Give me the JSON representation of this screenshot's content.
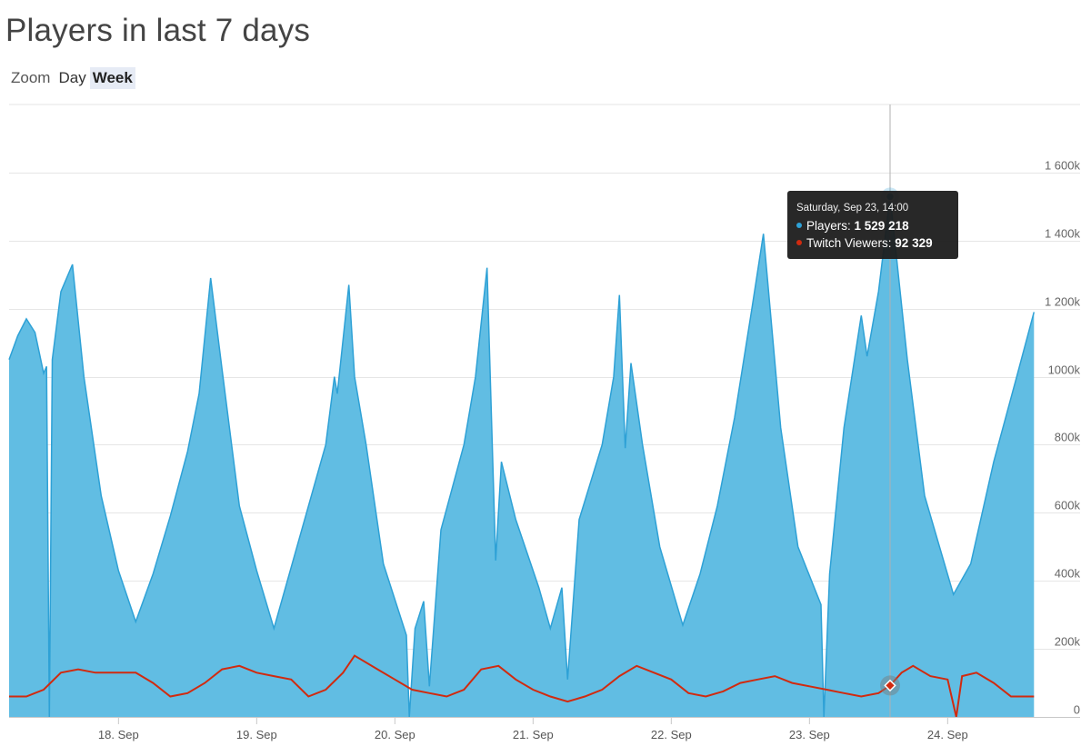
{
  "page": {
    "title": "Players in last 7 days"
  },
  "zoom": {
    "label": "Zoom",
    "buttons": [
      "Day",
      "Week"
    ],
    "active": "Week"
  },
  "tooltip": {
    "date": "Saturday, Sep 23, 14:00",
    "rows": [
      {
        "name": "Players",
        "value": "1 529 218",
        "color": "#2ea1d6"
      },
      {
        "name": "Twitch Viewers",
        "value": "92 329",
        "color": "#d12a0f"
      }
    ]
  },
  "colors": {
    "players_fill": "#61bde3",
    "players_line": "#2ea1d6",
    "twitch_line": "#d12a0f",
    "grid": "#e6e6e6"
  },
  "chart_data": {
    "type": "area",
    "title": "Players in last 7 days",
    "x_unit": "days",
    "x_range": [
      "Sep 17, 05:00",
      "Sep 24, 23:00"
    ],
    "x_ticks": [
      "18. Sep",
      "19. Sep",
      "20. Sep",
      "21. Sep",
      "22. Sep",
      "23. Sep",
      "24. Sep"
    ],
    "y_ticks": [
      "0",
      "200k",
      "400k",
      "600k",
      "800k",
      "1000k",
      "1 200k",
      "1 400k",
      "1 600k"
    ],
    "ylim": [
      0,
      1800000
    ],
    "grid": true,
    "series": [
      {
        "name": "Players",
        "type": "area",
        "points": [
          [
            "Sep 17 05:00",
            1050000
          ],
          [
            "Sep 17 06:30",
            1120000
          ],
          [
            "Sep 17 08:00",
            1170000
          ],
          [
            "Sep 17 09:30",
            1130000
          ],
          [
            "Sep 17 11:00",
            1010000
          ],
          [
            "Sep 17 11:30",
            1030000
          ],
          [
            "Sep 17 12:00",
            0
          ],
          [
            "Sep 17 12:30",
            1050000
          ],
          [
            "Sep 17 14:00",
            1250000
          ],
          [
            "Sep 17 16:00",
            1330000
          ],
          [
            "Sep 17 18:00",
            1000000
          ],
          [
            "Sep 17 21:00",
            650000
          ],
          [
            "Sep 18 00:00",
            430000
          ],
          [
            "Sep 18 03:00",
            280000
          ],
          [
            "Sep 18 06:00",
            420000
          ],
          [
            "Sep 18 09:00",
            590000
          ],
          [
            "Sep 18 12:00",
            780000
          ],
          [
            "Sep 18 14:00",
            950000
          ],
          [
            "Sep 18 16:00",
            1290000
          ],
          [
            "Sep 18 18:00",
            1020000
          ],
          [
            "Sep 18 21:00",
            620000
          ],
          [
            "Sep 19 00:00",
            430000
          ],
          [
            "Sep 19 03:00",
            260000
          ],
          [
            "Sep 19 06:00",
            440000
          ],
          [
            "Sep 19 09:00",
            620000
          ],
          [
            "Sep 19 12:00",
            800000
          ],
          [
            "Sep 19 13:30",
            1000000
          ],
          [
            "Sep 19 14:00",
            950000
          ],
          [
            "Sep 19 16:00",
            1270000
          ],
          [
            "Sep 19 17:00",
            1000000
          ],
          [
            "Sep 19 19:00",
            800000
          ],
          [
            "Sep 19 22:00",
            450000
          ],
          [
            "Sep 20 02:00",
            240000
          ],
          [
            "Sep 20 02:30",
            0
          ],
          [
            "Sep 20 03:30",
            260000
          ],
          [
            "Sep 20 05:00",
            340000
          ],
          [
            "Sep 20 06:00",
            90000
          ],
          [
            "Sep 20 08:00",
            550000
          ],
          [
            "Sep 20 12:00",
            800000
          ],
          [
            "Sep 20 14:00",
            1000000
          ],
          [
            "Sep 20 16:00",
            1320000
          ],
          [
            "Sep 20 17:30",
            460000
          ],
          [
            "Sep 20 18:30",
            750000
          ],
          [
            "Sep 20 21:00",
            580000
          ],
          [
            "Sep 21 01:00",
            380000
          ],
          [
            "Sep 21 03:00",
            260000
          ],
          [
            "Sep 21 05:00",
            380000
          ],
          [
            "Sep 21 06:00",
            110000
          ],
          [
            "Sep 21 08:00",
            580000
          ],
          [
            "Sep 21 12:00",
            800000
          ],
          [
            "Sep 21 14:00",
            1000000
          ],
          [
            "Sep 21 15:00",
            1240000
          ],
          [
            "Sep 21 16:00",
            790000
          ],
          [
            "Sep 21 17:00",
            1040000
          ],
          [
            "Sep 21 19:00",
            800000
          ],
          [
            "Sep 21 22:00",
            500000
          ],
          [
            "Sep 22 02:00",
            270000
          ],
          [
            "Sep 22 05:00",
            420000
          ],
          [
            "Sep 22 08:00",
            620000
          ],
          [
            "Sep 22 11:00",
            880000
          ],
          [
            "Sep 22 14:00",
            1200000
          ],
          [
            "Sep 22 16:00",
            1420000
          ],
          [
            "Sep 22 19:00",
            850000
          ],
          [
            "Sep 22 22:00",
            500000
          ],
          [
            "Sep 23 02:00",
            330000
          ],
          [
            "Sep 23 02:30",
            0
          ],
          [
            "Sep 23 03:30",
            420000
          ],
          [
            "Sep 23 06:00",
            850000
          ],
          [
            "Sep 23 09:00",
            1180000
          ],
          [
            "Sep 23 10:00",
            1060000
          ],
          [
            "Sep 23 12:00",
            1250000
          ],
          [
            "Sep 23 14:00",
            1529218
          ],
          [
            "Sep 23 17:00",
            1050000
          ],
          [
            "Sep 23 20:00",
            650000
          ],
          [
            "Sep 24 01:00",
            360000
          ],
          [
            "Sep 24 04:00",
            450000
          ],
          [
            "Sep 24 08:00",
            750000
          ],
          [
            "Sep 24 12:00",
            1000000
          ],
          [
            "Sep 24 15:00",
            1190000
          ]
        ]
      },
      {
        "name": "Twitch Viewers",
        "type": "line",
        "points": [
          [
            "Sep 17 05:00",
            60000
          ],
          [
            "Sep 17 08:00",
            60000
          ],
          [
            "Sep 17 11:00",
            80000
          ],
          [
            "Sep 17 14:00",
            130000
          ],
          [
            "Sep 17 17:00",
            140000
          ],
          [
            "Sep 17 20:00",
            130000
          ],
          [
            "Sep 18 00:00",
            130000
          ],
          [
            "Sep 18 03:00",
            130000
          ],
          [
            "Sep 18 06:00",
            100000
          ],
          [
            "Sep 18 09:00",
            60000
          ],
          [
            "Sep 18 12:00",
            70000
          ],
          [
            "Sep 18 15:00",
            100000
          ],
          [
            "Sep 18 18:00",
            140000
          ],
          [
            "Sep 18 21:00",
            150000
          ],
          [
            "Sep 19 00:00",
            130000
          ],
          [
            "Sep 19 03:00",
            120000
          ],
          [
            "Sep 19 06:00",
            110000
          ],
          [
            "Sep 19 09:00",
            60000
          ],
          [
            "Sep 19 12:00",
            80000
          ],
          [
            "Sep 19 15:00",
            130000
          ],
          [
            "Sep 19 17:00",
            180000
          ],
          [
            "Sep 19 18:00",
            170000
          ],
          [
            "Sep 19 21:00",
            140000
          ],
          [
            "Sep 20 00:00",
            110000
          ],
          [
            "Sep 20 03:00",
            80000
          ],
          [
            "Sep 20 06:00",
            70000
          ],
          [
            "Sep 20 09:00",
            60000
          ],
          [
            "Sep 20 12:00",
            80000
          ],
          [
            "Sep 20 15:00",
            140000
          ],
          [
            "Sep 20 18:00",
            150000
          ],
          [
            "Sep 20 21:00",
            110000
          ],
          [
            "Sep 21 00:00",
            80000
          ],
          [
            "Sep 21 03:00",
            60000
          ],
          [
            "Sep 21 06:00",
            45000
          ],
          [
            "Sep 21 09:00",
            60000
          ],
          [
            "Sep 21 12:00",
            80000
          ],
          [
            "Sep 21 15:00",
            120000
          ],
          [
            "Sep 21 18:00",
            150000
          ],
          [
            "Sep 21 21:00",
            130000
          ],
          [
            "Sep 22 00:00",
            110000
          ],
          [
            "Sep 22 03:00",
            70000
          ],
          [
            "Sep 22 06:00",
            60000
          ],
          [
            "Sep 22 09:00",
            75000
          ],
          [
            "Sep 22 12:00",
            100000
          ],
          [
            "Sep 22 15:00",
            110000
          ],
          [
            "Sep 22 18:00",
            120000
          ],
          [
            "Sep 22 21:00",
            100000
          ],
          [
            "Sep 23 00:00",
            90000
          ],
          [
            "Sep 23 03:00",
            80000
          ],
          [
            "Sep 23 06:00",
            70000
          ],
          [
            "Sep 23 09:00",
            60000
          ],
          [
            "Sep 23 12:00",
            70000
          ],
          [
            "Sep 23 14:00",
            92329
          ],
          [
            "Sep 23 16:00",
            130000
          ],
          [
            "Sep 23 18:00",
            150000
          ],
          [
            "Sep 23 21:00",
            120000
          ],
          [
            "Sep 24 00:00",
            110000
          ],
          [
            "Sep 24 01:30",
            0
          ],
          [
            "Sep 24 02:30",
            120000
          ],
          [
            "Sep 24 05:00",
            130000
          ],
          [
            "Sep 24 08:00",
            100000
          ],
          [
            "Sep 24 11:00",
            60000
          ],
          [
            "Sep 24 15:00",
            60000
          ]
        ]
      }
    ]
  }
}
